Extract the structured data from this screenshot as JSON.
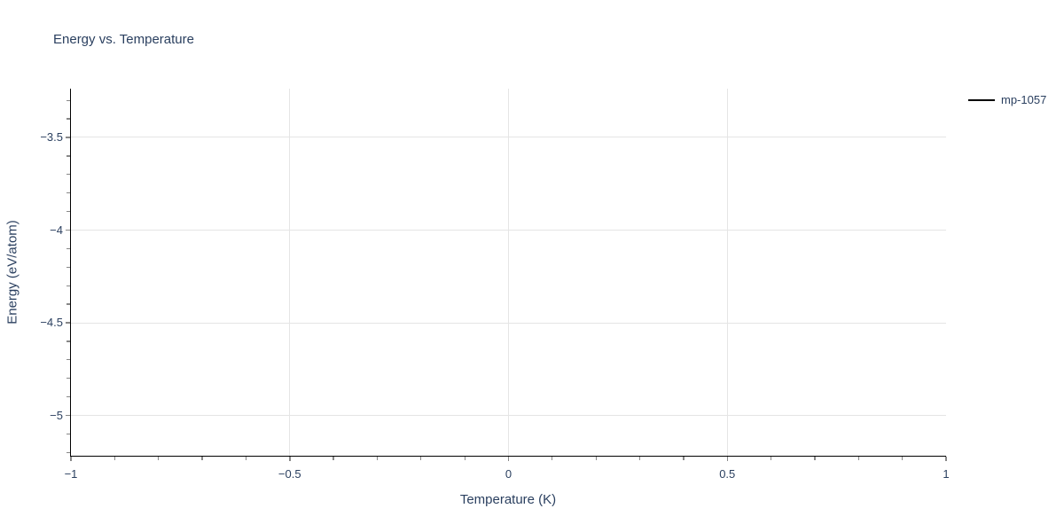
{
  "chart_data": {
    "type": "line",
    "title": "Energy vs. Temperature",
    "xlabel": "Temperature (K)",
    "ylabel": "Energy (eV/atom)",
    "xlim": [
      -1,
      1
    ],
    "ylim": [
      -5.215,
      -3.237
    ],
    "x_major_ticks": [
      -1,
      -0.5,
      0,
      0.5,
      1
    ],
    "x_major_tick_labels": [
      "−1",
      "−0.5",
      "0",
      "0.5",
      "1"
    ],
    "x_grid_ticks": [
      -0.5,
      0,
      0.5
    ],
    "x_minor_tick_step": 0.1,
    "y_major_ticks": [
      -3.5,
      -4,
      -4.5,
      -5
    ],
    "y_major_tick_labels": [
      "−3.5",
      "−4",
      "−4.5",
      "−5"
    ],
    "y_minor_tick_step": 0.1,
    "grid": true,
    "legend": {
      "position": "top-right",
      "entries": [
        {
          "label": "mp-1057",
          "color": "#000000",
          "marker": "line"
        }
      ]
    },
    "series": [
      {
        "name": "mp-1057",
        "color": "#000000",
        "x": [],
        "y": []
      }
    ]
  },
  "colors": {
    "text": "#2a3f5f",
    "grid": "#e5e5e5",
    "axis_line": "#000000",
    "tick": "#888888",
    "series_line": "#000000",
    "background": "#ffffff"
  }
}
